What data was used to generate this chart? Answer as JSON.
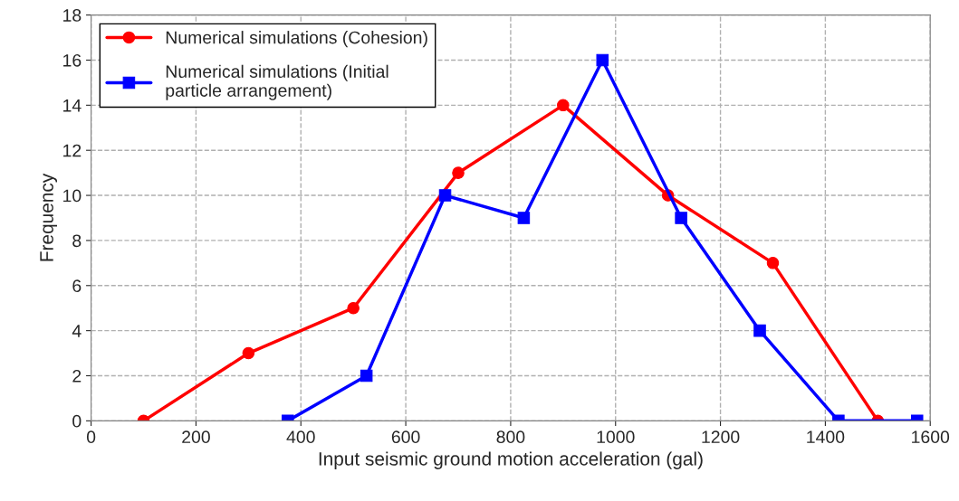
{
  "chart_data": {
    "type": "line",
    "xlabel": "Input seismic ground motion acceleration (gal)",
    "ylabel": "Frequency",
    "xlim": [
      0,
      1600
    ],
    "xticks": [
      0,
      200,
      400,
      600,
      800,
      1000,
      1200,
      1400,
      1600
    ],
    "ylim": [
      0,
      18
    ],
    "yticks": [
      0,
      2,
      4,
      6,
      8,
      10,
      12,
      14,
      16,
      18
    ],
    "grid": true,
    "legend": "top left",
    "series": [
      {
        "name": "Numerical simulations (Cohesion)",
        "color": "#ff0000",
        "marker": "circle",
        "x": [
          100,
          300,
          500,
          700,
          900,
          1100,
          1300,
          1500
        ],
        "values": [
          0,
          3,
          5,
          11,
          14,
          10,
          7,
          0
        ]
      },
      {
        "name": "Numerical simulations (Initial\nparticle arrangement)",
        "color": "#0000ff",
        "marker": "square",
        "x": [
          375,
          525,
          675,
          825,
          975,
          1125,
          1275,
          1425,
          1575
        ],
        "values": [
          0,
          2,
          10,
          9,
          16,
          9,
          4,
          0,
          0
        ]
      }
    ]
  }
}
